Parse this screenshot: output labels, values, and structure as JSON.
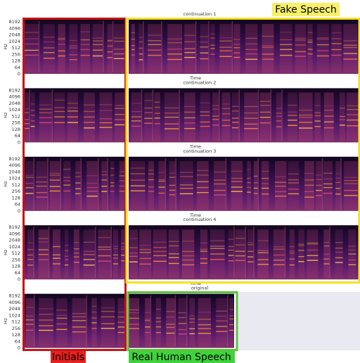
{
  "header": {
    "label": "Fake Speech"
  },
  "panels": [
    {
      "title": "continuation 1",
      "x_label": "Time",
      "y_label": "Hz",
      "yticks": [
        8192,
        4096,
        2048,
        1024,
        512,
        256,
        128,
        64,
        0
      ]
    },
    {
      "title": "continuation 2",
      "x_label": "Time",
      "y_label": "Hz",
      "yticks": [
        8192,
        4096,
        2048,
        1024,
        512,
        256,
        128,
        64,
        0
      ]
    },
    {
      "title": "continuation 3",
      "x_label": "Time",
      "y_label": "Hz",
      "yticks": [
        8192,
        4096,
        2048,
        1024,
        512,
        256,
        128,
        64,
        0
      ]
    },
    {
      "title": "continuation 4",
      "x_label": "Time",
      "y_label": "Hz",
      "yticks": [
        8192,
        4096,
        2048,
        1024,
        512,
        256,
        128,
        64,
        0
      ]
    },
    {
      "title": "original",
      "y_label": "Hz",
      "yticks": [
        8192,
        4096,
        2048,
        1024,
        512,
        256,
        128,
        64,
        0
      ]
    }
  ],
  "footer": {
    "left_label": "Initials",
    "right_label": "Real Human Speech"
  }
}
